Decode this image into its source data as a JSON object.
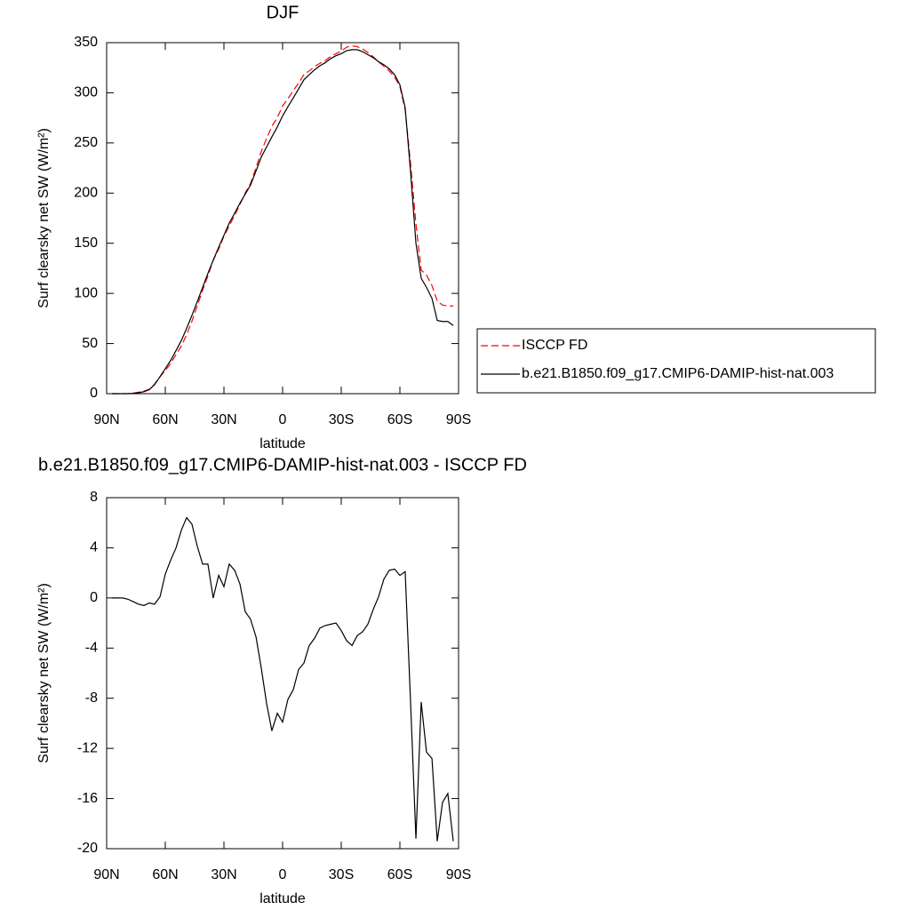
{
  "chart_data": [
    {
      "type": "line",
      "title": "DJF",
      "xlabel": "latitude",
      "ylabel": "Surf clearsky net SW (W/m²)",
      "x": [
        87.3,
        84.5,
        81.8,
        79.1,
        76.4,
        73.6,
        70.9,
        68.2,
        65.5,
        62.7,
        60.0,
        57.3,
        54.5,
        51.8,
        49.1,
        46.4,
        43.6,
        40.9,
        38.2,
        35.5,
        32.7,
        30.0,
        27.3,
        24.5,
        21.8,
        19.1,
        16.4,
        13.6,
        10.9,
        8.2,
        5.5,
        2.7,
        0.0,
        -2.7,
        -5.5,
        -8.2,
        -10.9,
        -13.6,
        -16.4,
        -19.1,
        -21.8,
        -24.5,
        -27.3,
        -30.0,
        -32.7,
        -35.5,
        -38.2,
        -40.9,
        -43.6,
        -46.4,
        -49.1,
        -51.8,
        -54.5,
        -57.3,
        -60.0,
        -62.7,
        -65.5,
        -68.2,
        -70.9,
        -73.6,
        -76.4,
        -79.1,
        -81.8,
        -84.5,
        -87.3
      ],
      "xlim": [
        90,
        -90
      ],
      "xticks": [
        {
          "value": 90,
          "label": "90N"
        },
        {
          "value": 60,
          "label": "60N"
        },
        {
          "value": 30,
          "label": "30N"
        },
        0,
        {
          "value": -30,
          "label": "30S"
        },
        {
          "value": -60,
          "label": "60S"
        },
        {
          "value": -90,
          "label": "90S"
        }
      ],
      "ylim": [
        0,
        350
      ],
      "yticks": [
        0,
        50,
        100,
        150,
        200,
        250,
        300,
        350
      ],
      "legend": "right",
      "series": [
        {
          "name": "ISCCP FD",
          "color": "#ff0000",
          "dash": "dashed",
          "values": [
            0,
            0,
            0,
            0.1,
            0.6,
            1.5,
            2.6,
            4.4,
            9.5,
            16.9,
            23.1,
            30,
            39,
            47.6,
            58.6,
            72.1,
            87.9,
            103.3,
            117.3,
            133,
            144.2,
            157.1,
            167.3,
            177.8,
            188.9,
            200.1,
            209.7,
            225.1,
            241.6,
            254.4,
            266.6,
            275.2,
            286.9,
            294.1,
            302.3,
            309.7,
            318.2,
            321.8,
            326.2,
            329.4,
            332.2,
            336.1,
            339,
            341.6,
            345.4,
            346.8,
            346,
            343.7,
            340.1,
            335.9,
            330.9,
            326.5,
            321.8,
            315.7,
            306.2,
            282.9,
            228.5,
            169.2,
            123.3,
            118.3,
            107.8,
            92.4,
            88.3,
            87.6,
            87.4
          ]
        },
        {
          "name": "b.e21.B1850.f09_g17.CMIP6-DAMIP-hist-nat.003",
          "color": "#000000",
          "values": [
            0,
            0,
            0,
            0,
            0.3,
            1,
            2,
            4,
            9,
            17,
            25,
            33,
            43,
            53,
            65,
            78,
            92,
            106,
            120,
            133,
            146,
            158,
            170,
            180,
            190,
            199,
            208,
            222,
            236,
            246,
            256,
            266,
            277,
            286,
            295,
            304,
            313,
            318,
            323,
            327,
            330,
            334,
            337,
            339,
            342,
            343,
            343,
            341,
            338,
            335,
            331,
            328,
            324,
            318,
            308,
            285,
            220,
            150,
            115,
            106,
            95,
            73,
            72,
            72,
            68
          ]
        }
      ]
    },
    {
      "type": "line",
      "title": "b.e21.B1850.f09_g17.CMIP6-DAMIP-hist-nat.003 - ISCCP FD",
      "xlabel": "latitude",
      "ylabel": "Surf clearsky net SW (W/m²)",
      "x": [
        87.3,
        84.5,
        81.8,
        79.1,
        76.4,
        73.6,
        70.9,
        68.2,
        65.5,
        62.7,
        60.0,
        57.3,
        54.5,
        51.8,
        49.1,
        46.4,
        43.6,
        40.9,
        38.2,
        35.5,
        32.7,
        30.0,
        27.3,
        24.5,
        21.8,
        19.1,
        16.4,
        13.6,
        10.9,
        8.2,
        5.5,
        2.7,
        0.0,
        -2.7,
        -5.5,
        -8.2,
        -10.9,
        -13.6,
        -16.4,
        -19.1,
        -21.8,
        -24.5,
        -27.3,
        -30.0,
        -32.7,
        -35.5,
        -38.2,
        -40.9,
        -43.6,
        -46.4,
        -49.1,
        -51.8,
        -54.5,
        -57.3,
        -60.0,
        -62.7,
        -65.5,
        -68.2,
        -70.9,
        -73.6,
        -76.4,
        -79.1,
        -81.8,
        -84.5,
        -87.3
      ],
      "xlim": [
        90,
        -90
      ],
      "xticks": [
        {
          "value": 90,
          "label": "90N"
        },
        {
          "value": 60,
          "label": "60N"
        },
        {
          "value": 30,
          "label": "30N"
        },
        0,
        {
          "value": -30,
          "label": "30S"
        },
        {
          "value": -60,
          "label": "60S"
        },
        {
          "value": -90,
          "label": "90S"
        }
      ],
      "ylim": [
        -20,
        8
      ],
      "yticks": [
        -20,
        -16,
        -12,
        -8,
        -4,
        0,
        4,
        8
      ],
      "series": [
        {
          "color": "#000000",
          "values": [
            0,
            0,
            0,
            -0.1,
            -0.3,
            -0.5,
            -0.6,
            -0.4,
            -0.5,
            0.1,
            1.9,
            3,
            4,
            5.4,
            6.4,
            5.9,
            4.1,
            2.7,
            2.7,
            0,
            1.8,
            0.9,
            2.7,
            2.2,
            1.1,
            -1.1,
            -1.7,
            -3.1,
            -5.6,
            -8.4,
            -10.6,
            -9.2,
            -9.9,
            -8.1,
            -7.3,
            -5.7,
            -5.2,
            -3.8,
            -3.2,
            -2.4,
            -2.2,
            -2.1,
            -2,
            -2.6,
            -3.4,
            -3.8,
            -3,
            -2.7,
            -2.1,
            -0.9,
            0.1,
            1.5,
            2.2,
            2.3,
            1.8,
            2.1,
            -8.5,
            -19.2,
            -8.3,
            -12.3,
            -12.8,
            -19.4,
            -16.3,
            -15.6,
            -19.4
          ]
        }
      ]
    }
  ]
}
